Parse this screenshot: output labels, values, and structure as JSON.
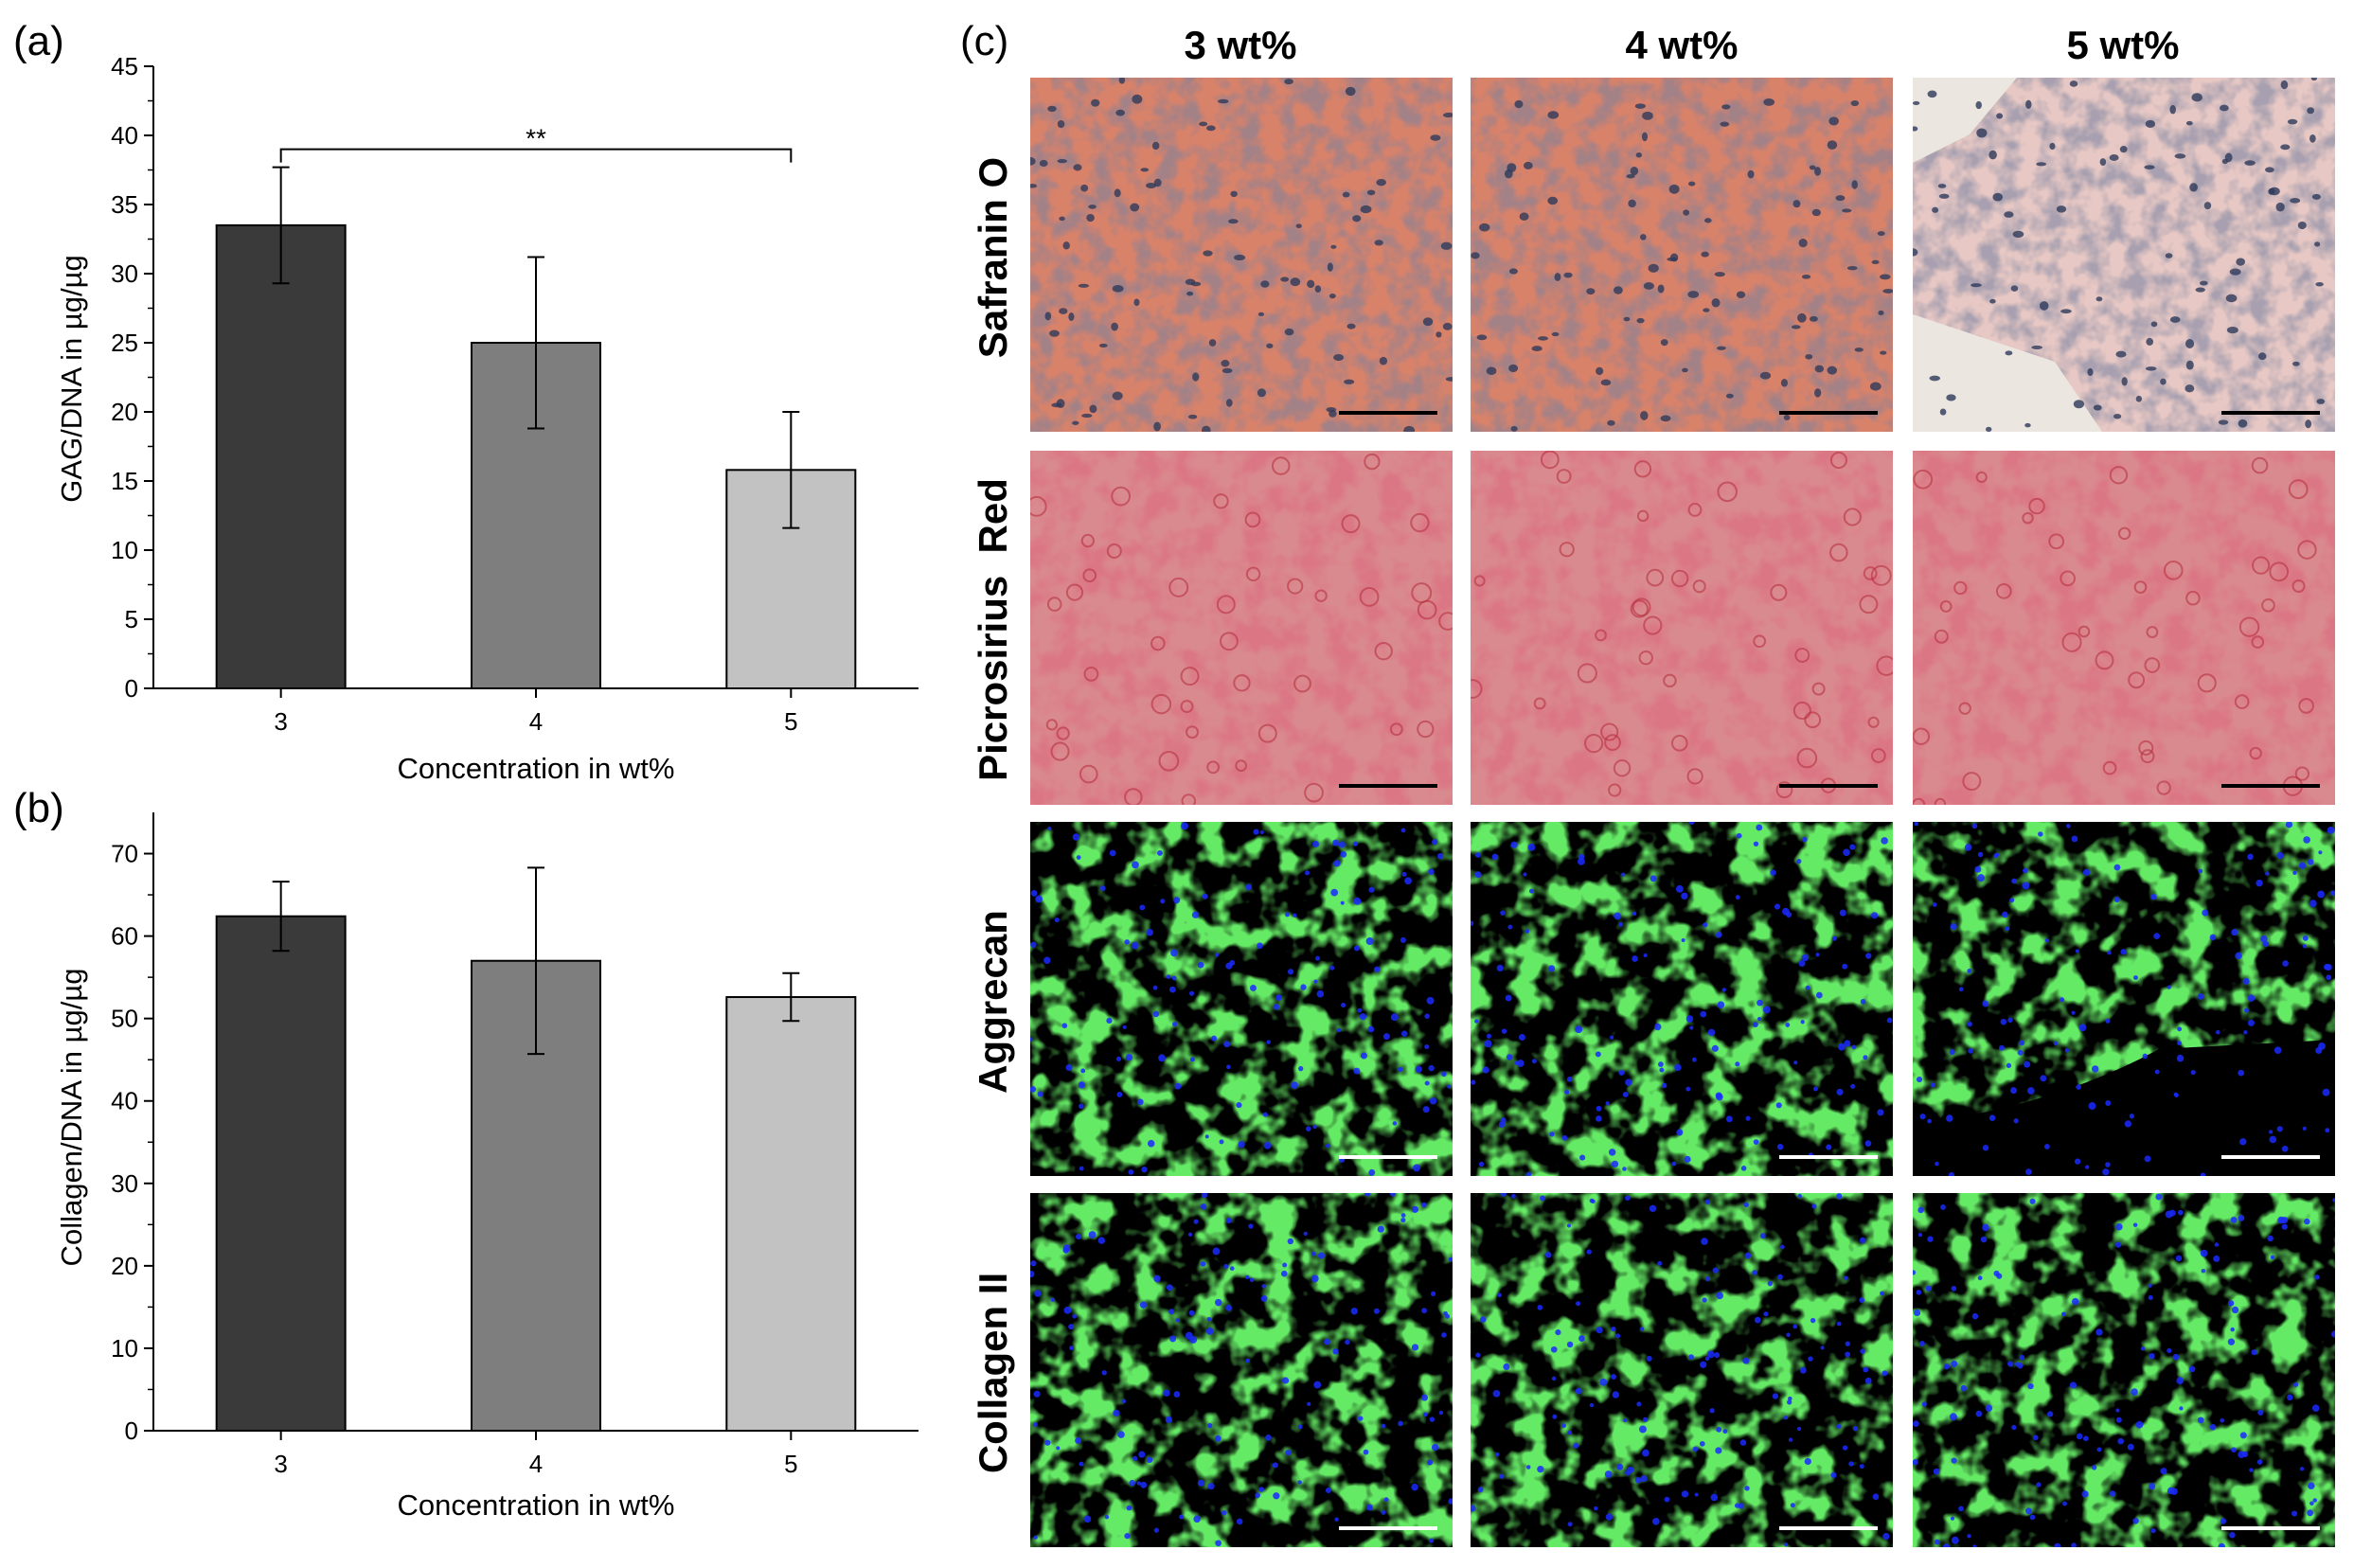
{
  "figure": {
    "panel_labels": [
      "(a)",
      "(b)",
      "(c)"
    ]
  },
  "colors": {
    "bar_3": "#3a3a3a",
    "bar_4": "#7e7e7e",
    "bar_5": "#c2c2c2",
    "axis": "#000000",
    "safranin_bg": "#d9826a",
    "safranin_cell": "#2e3a5a",
    "picrosirius_bg": "#d98a8e",
    "picrosirius_cell": "#b83040",
    "fluor_green": "#22cc22",
    "fluor_blue": "#1a2aff",
    "scale_bar_dark": "#000000",
    "scale_bar_light": "#ffffff"
  },
  "chart_data": [
    {
      "panel": "(a)",
      "type": "bar",
      "categories": [
        "3",
        "4",
        "5"
      ],
      "values": [
        33.5,
        25.0,
        15.8
      ],
      "errors": [
        4.2,
        6.2,
        4.2
      ],
      "xlabel": "Concentration in wt%",
      "ylabel": "GAG/DNA in µg/µg",
      "ylim": [
        0,
        45
      ],
      "yticks": [
        "0",
        "5",
        "10",
        "15",
        "20",
        "25",
        "30",
        "35",
        "40",
        "45"
      ],
      "significance": {
        "from": "3",
        "to": "5",
        "label": "**",
        "value": 39.0
      },
      "grid": false
    },
    {
      "panel": "(b)",
      "type": "bar",
      "categories": [
        "3",
        "4",
        "5"
      ],
      "values": [
        62.4,
        57.0,
        52.6
      ],
      "errors": [
        4.2,
        11.3,
        2.9
      ],
      "xlabel": "Concentration in wt%",
      "ylabel": "Collagen/DNA in µg/µg",
      "ylim": [
        0,
        75
      ],
      "yticks": [
        "0",
        "10",
        "20",
        "30",
        "40",
        "50",
        "60",
        "70"
      ],
      "grid": false
    }
  ],
  "micrographs": {
    "panel": "(c)",
    "columns": [
      "3 wt%",
      "4 wt%",
      "5 wt%"
    ],
    "rows": [
      "Safranin O",
      "Picrosirius  Red",
      "Aggrecan",
      "Collagen II"
    ]
  }
}
